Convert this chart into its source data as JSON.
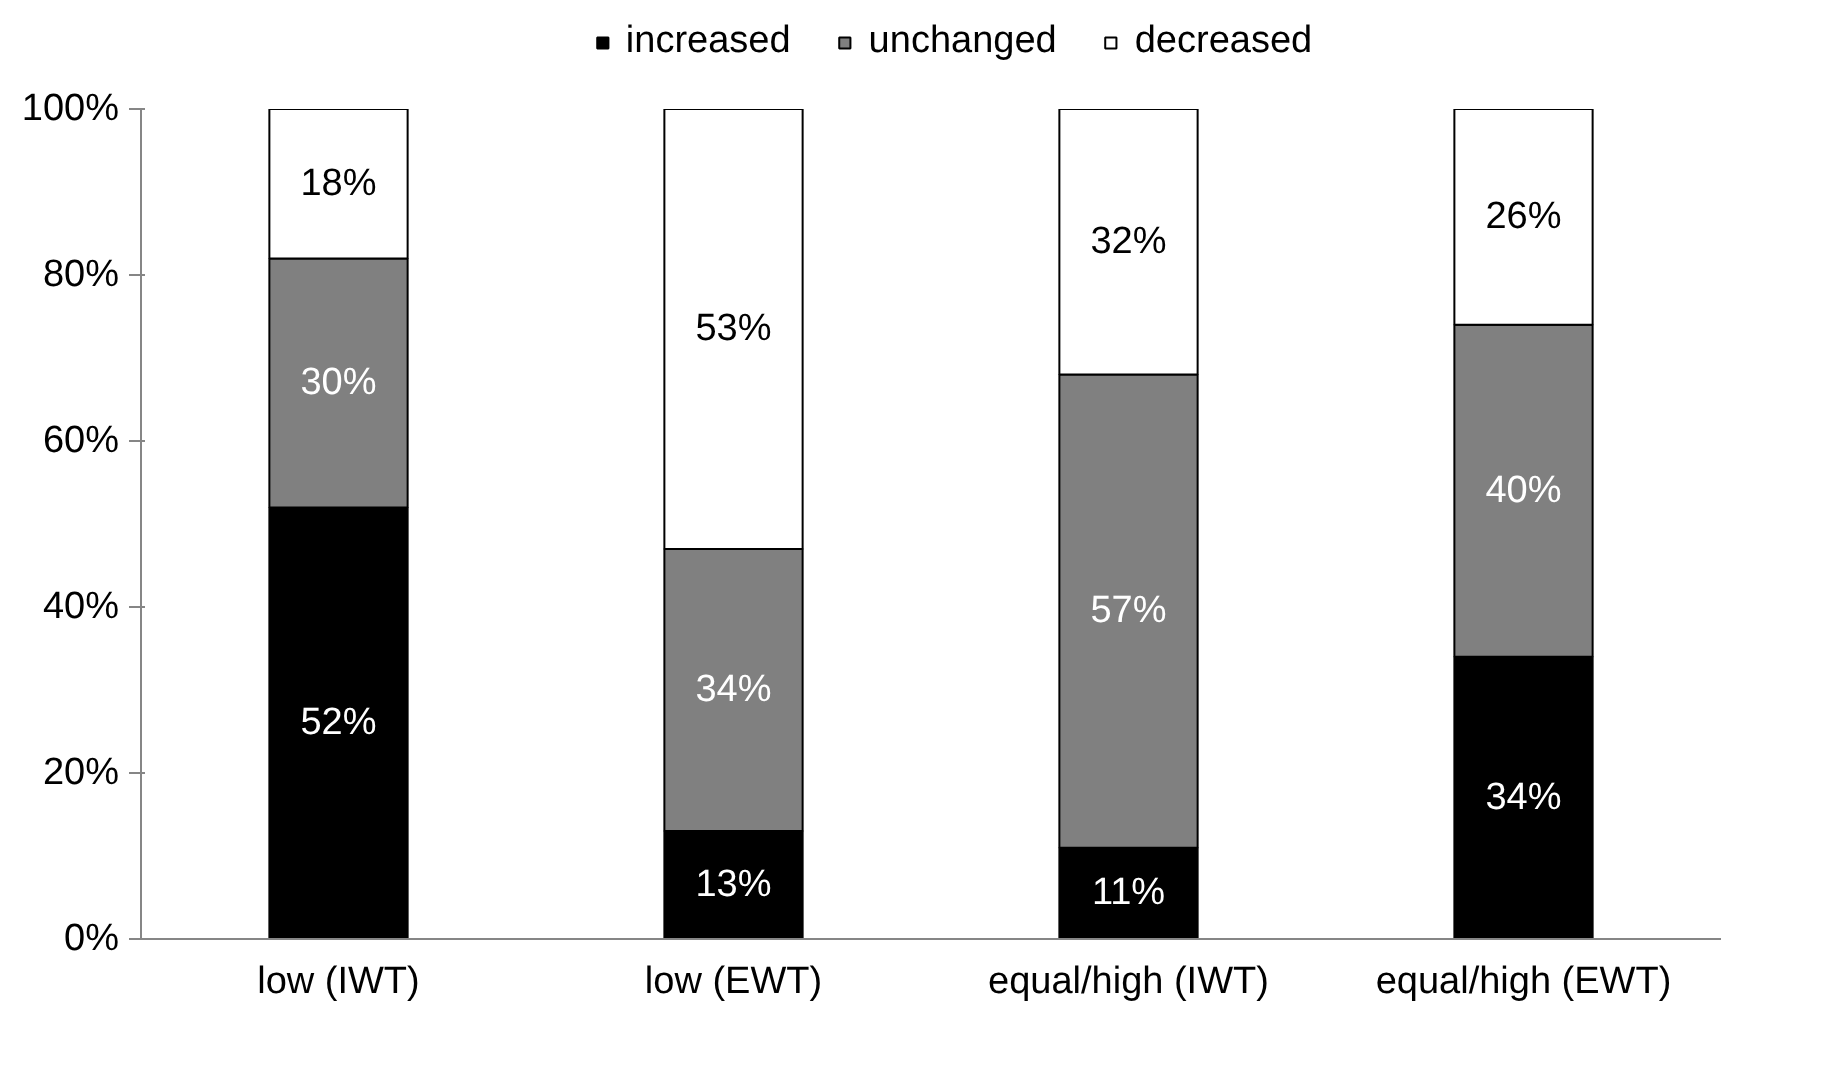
{
  "chart_data": {
    "type": "bar",
    "stacked": true,
    "categories": [
      "low (IWT)",
      "low (EWT)",
      "equal/high (IWT)",
      "equal/high (EWT)"
    ],
    "series": [
      {
        "name": "increased",
        "color": "#000000",
        "values": [
          52,
          13,
          11,
          34
        ],
        "value_labels": [
          "52%",
          "13%",
          "11%",
          "34%"
        ]
      },
      {
        "name": "unchanged",
        "color": "#808080",
        "values": [
          30,
          34,
          57,
          40
        ],
        "value_labels": [
          "30%",
          "34%",
          "57%",
          "40%"
        ]
      },
      {
        "name": "decreased",
        "color": "#ffffff",
        "values": [
          18,
          53,
          32,
          26
        ],
        "value_labels": [
          "18%",
          "53%",
          "32%",
          "26%"
        ]
      }
    ],
    "ylim": [
      0,
      100
    ],
    "yticks": [
      {
        "value": 0,
        "label": "0%"
      },
      {
        "value": 20,
        "label": "20%"
      },
      {
        "value": 40,
        "label": "40%"
      },
      {
        "value": 60,
        "label": "60%"
      },
      {
        "value": 80,
        "label": "80%"
      },
      {
        "value": 100,
        "label": "100%"
      }
    ],
    "grid": false,
    "legend": "top"
  }
}
